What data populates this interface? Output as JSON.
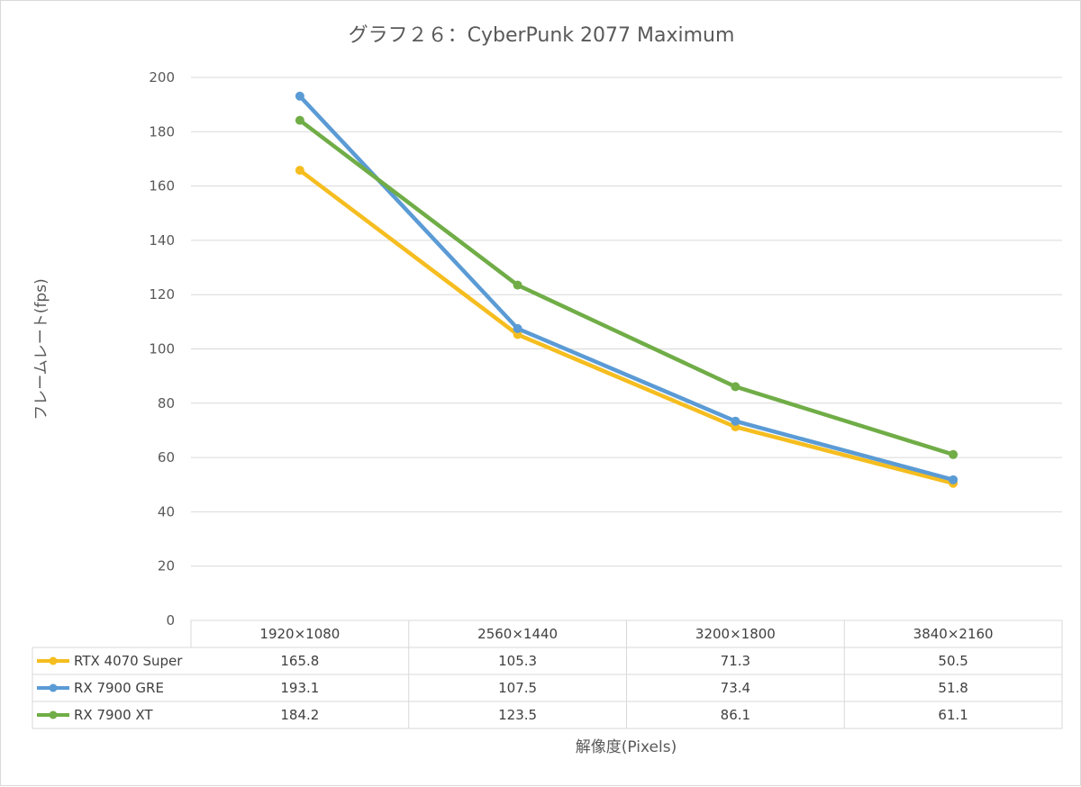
{
  "chart_data": {
    "type": "line",
    "title": "グラフ２６：CyberPunk 2077 Maximum",
    "xlabel": "解像度(Pixels)",
    "ylabel": "フレームレート(fps)",
    "categories": [
      "1920×1080",
      "2560×1440",
      "3200×1800",
      "3840×2160"
    ],
    "ylim": [
      0,
      200
    ],
    "yticks": [
      0,
      20,
      40,
      60,
      80,
      100,
      120,
      140,
      160,
      180,
      200
    ],
    "grid": true,
    "legend": "data-table",
    "series": [
      {
        "name": "RTX 4070 Super",
        "color": "#f5bd1f",
        "values": [
          165.8,
          105.3,
          71.3,
          50.5
        ],
        "labels": [
          "165.8",
          "105.3",
          "71.3",
          "50.5"
        ]
      },
      {
        "name": "RX 7900 GRE",
        "color": "#5b9bd5",
        "values": [
          193.1,
          107.5,
          73.4,
          51.8
        ],
        "labels": [
          "193.1",
          "107.5",
          "73.4",
          "51.8"
        ]
      },
      {
        "name": "RX 7900 XT",
        "color": "#70ad47",
        "values": [
          184.2,
          123.5,
          86.1,
          61.1
        ],
        "labels": [
          "184.2",
          "123.5",
          "86.1",
          "61.1"
        ]
      }
    ]
  }
}
